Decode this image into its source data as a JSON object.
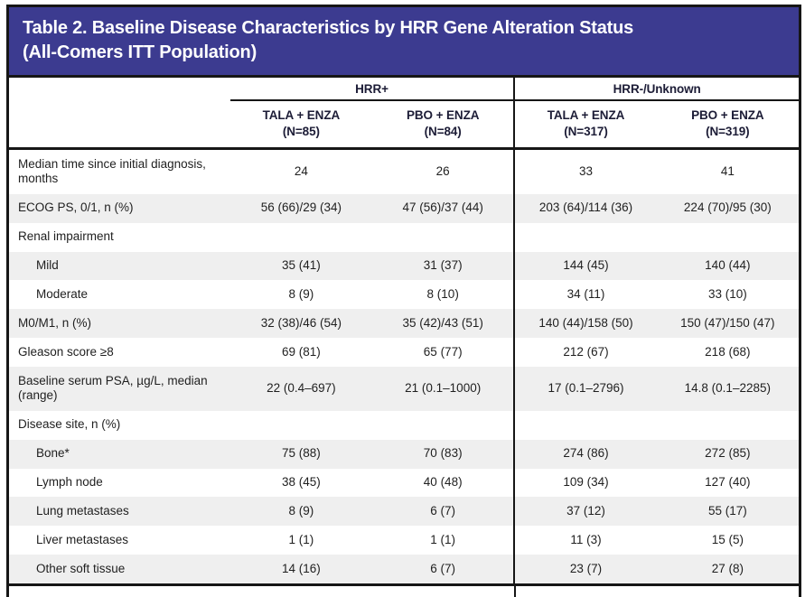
{
  "title": {
    "line1": "Table 2. Baseline Disease Characteristics by HRR Gene Alteration Status",
    "line2": "(All-Comers ITT Population)"
  },
  "table": {
    "groups": [
      {
        "label": "HRR+",
        "columns": [
          {
            "arm": "TALA + ENZA",
            "n": "(N=85)"
          },
          {
            "arm": "PBO + ENZA",
            "n": "(N=84)"
          }
        ]
      },
      {
        "label": "HRR-/Unknown",
        "columns": [
          {
            "arm": "TALA + ENZA",
            "n": "(N=317)"
          },
          {
            "arm": "PBO + ENZA",
            "n": "(N=319)"
          }
        ]
      }
    ],
    "rows": [
      {
        "label": "Median time since initial diagnosis, months",
        "indent": false,
        "values": [
          "24",
          "26",
          "33",
          "41"
        ]
      },
      {
        "label": "ECOG PS, 0/1, n (%)",
        "indent": false,
        "values": [
          "56 (66)/29 (34)",
          "47 (56)/37 (44)",
          "203 (64)/114 (36)",
          "224 (70)/95 (30)"
        ]
      },
      {
        "label": "Renal impairment",
        "indent": false,
        "values": [
          "",
          "",
          "",
          ""
        ]
      },
      {
        "label": "Mild",
        "indent": true,
        "values": [
          "35 (41)",
          "31 (37)",
          "144 (45)",
          "140 (44)"
        ]
      },
      {
        "label": "Moderate",
        "indent": true,
        "values": [
          "8 (9)",
          "8 (10)",
          "34 (11)",
          "33 (10)"
        ]
      },
      {
        "label": "M0/M1, n (%)",
        "indent": false,
        "values": [
          "32 (38)/46 (54)",
          "35 (42)/43 (51)",
          "140 (44)/158 (50)",
          "150 (47)/150 (47)"
        ]
      },
      {
        "label": "Gleason score ≥8",
        "indent": false,
        "values": [
          "69 (81)",
          "65 (77)",
          "212 (67)",
          "218 (68)"
        ]
      },
      {
        "label": "Baseline serum PSA, µg/L, median (range)",
        "indent": false,
        "values": [
          "22 (0.4–697)",
          "21 (0.1–1000)",
          "17 (0.1–2796)",
          "14.8 (0.1–2285)"
        ]
      },
      {
        "label": "Disease site, n (%)",
        "indent": false,
        "values": [
          "",
          "",
          "",
          ""
        ]
      },
      {
        "label": "Bone*",
        "indent": true,
        "values": [
          "75 (88)",
          "70 (83)",
          "274 (86)",
          "272 (85)"
        ]
      },
      {
        "label": "Lymph node",
        "indent": true,
        "values": [
          "38 (45)",
          "40 (48)",
          "109 (34)",
          "127 (40)"
        ]
      },
      {
        "label": "Lung metastases",
        "indent": true,
        "values": [
          "8 (9)",
          "6 (7)",
          "37 (12)",
          "55 (17)"
        ]
      },
      {
        "label": "Liver metastases",
        "indent": true,
        "values": [
          "1 (1)",
          "1 (1)",
          "11 (3)",
          "15 (5)"
        ]
      },
      {
        "label": "Other soft tissue",
        "indent": true,
        "values": [
          "14 (16)",
          "6 (7)",
          "23 (7)",
          "27 (8)"
        ]
      }
    ]
  },
  "colors": {
    "title_bar": "#3c3b90",
    "row_shade": "#efefef",
    "border_dark": "#161616",
    "header_text": "#1c1c36",
    "body_text": "#1f1f1f"
  }
}
